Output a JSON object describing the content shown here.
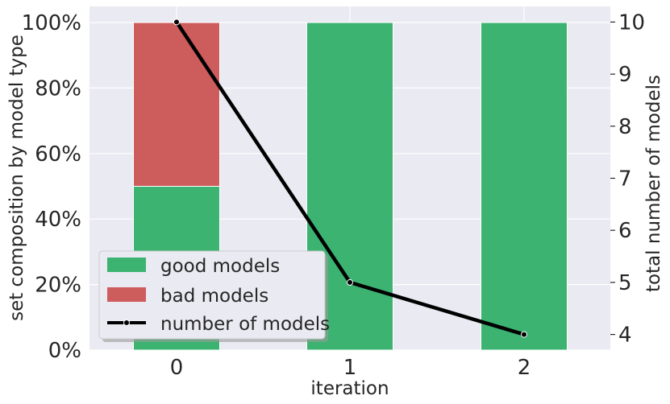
{
  "chart_data": {
    "type": "bar",
    "categories": [
      "0",
      "1",
      "2"
    ],
    "series": [
      {
        "name": "good models",
        "values": [
          50,
          100,
          100
        ],
        "color": "#3cb371"
      },
      {
        "name": "bad models",
        "values": [
          50,
          0,
          0
        ],
        "color": "#cd5c5c"
      }
    ],
    "line_series": {
      "name": "number of models",
      "values": [
        10,
        5,
        4
      ],
      "color": "#000000"
    },
    "xlabel": "iteration",
    "ylabel": "set composition by model type",
    "ylabel_right": "total number of models",
    "ylim": [
      0,
      100
    ],
    "ylim_right": [
      3.7,
      10.3
    ],
    "yticks": [
      "0%",
      "20%",
      "40%",
      "60%",
      "80%",
      "100%"
    ],
    "yticks_right": [
      "4",
      "5",
      "6",
      "7",
      "8",
      "9",
      "10"
    ],
    "stacked": true,
    "grid": true,
    "legend_position": "lower-left",
    "background": "#eaeaf2"
  }
}
